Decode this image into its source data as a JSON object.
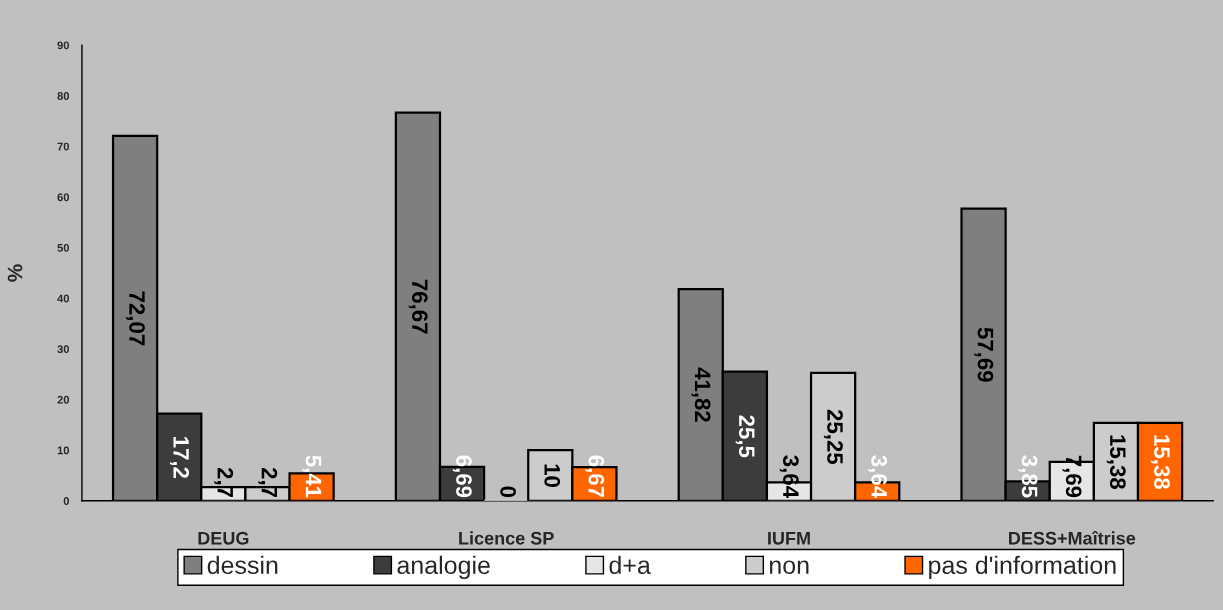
{
  "chart_data": {
    "type": "bar",
    "ylabel": "%",
    "categories": [
      "DEUG",
      "Licence SP",
      "IUFM",
      "DESS+Maîtrise"
    ],
    "series": [
      {
        "name": "dessin",
        "color": "#7f7f7f",
        "values": [
          72.07,
          76.67,
          41.82,
          57.69
        ],
        "value_labels": [
          "72,07",
          "76,67",
          "41,82",
          "57,69"
        ]
      },
      {
        "name": "analogie",
        "color": "#3c3c3c",
        "values": [
          17.2,
          6.69,
          25.5,
          3.85
        ],
        "value_labels": [
          "17,2",
          "6,69",
          "25,5",
          "3,85"
        ]
      },
      {
        "name": "d+a",
        "color": "#e6e6e6",
        "values": [
          2.7,
          0,
          3.64,
          7.69
        ],
        "value_labels": [
          "2,7",
          "0",
          "3,64",
          "7,69"
        ]
      },
      {
        "name": "non",
        "color": "#cccccc",
        "values": [
          2.7,
          10,
          25.25,
          15.38
        ],
        "value_labels": [
          "2,7",
          "10",
          "25,25",
          "15,38"
        ]
      },
      {
        "name": "pas d'information",
        "color": "#ff6600",
        "values": [
          5.41,
          6.67,
          3.64,
          15.38
        ],
        "value_labels": [
          "5,41",
          "6,67",
          "3,64",
          "15,38"
        ]
      }
    ],
    "ylim": [
      0,
      90
    ],
    "yticks": [
      0,
      10,
      20,
      30,
      40,
      50,
      60,
      70,
      80,
      90
    ],
    "legend": "bottom"
  }
}
